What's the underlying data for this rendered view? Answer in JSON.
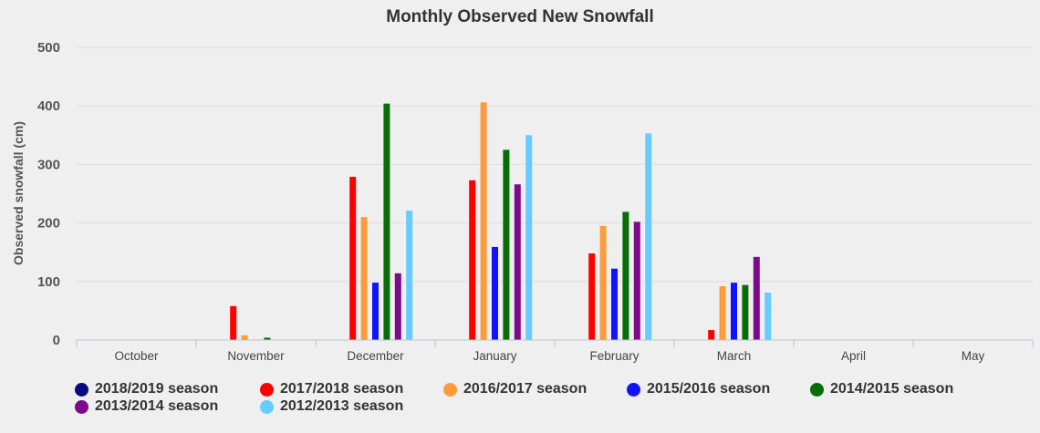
{
  "chart_data": {
    "type": "bar",
    "title": "Monthly Observed New Snowfall",
    "xlabel": "",
    "ylabel": "Observed snowfall (cm)",
    "ylim": [
      0,
      500
    ],
    "yticks": [
      "0",
      "100",
      "200",
      "300",
      "400",
      "500"
    ],
    "grid": true,
    "legend_position": "bottom",
    "categories": [
      "October",
      "November",
      "December",
      "January",
      "February",
      "March",
      "April",
      "May"
    ],
    "series": [
      {
        "name": "2018/2019 season",
        "color": "#0b0b80",
        "values": [
          0,
          0,
          0,
          0,
          0,
          0,
          0,
          0
        ]
      },
      {
        "name": "2017/2018 season",
        "color": "#ff0000",
        "values": [
          0,
          58,
          279,
          273,
          148,
          17,
          0,
          0
        ]
      },
      {
        "name": "2016/2017 season",
        "color": "#ff9a3c",
        "values": [
          0,
          8,
          210,
          406,
          195,
          92,
          0,
          0
        ]
      },
      {
        "name": "2015/2016 season",
        "color": "#1212ff",
        "values": [
          0,
          0,
          98,
          159,
          122,
          98,
          0,
          0
        ]
      },
      {
        "name": "2014/2015 season",
        "color": "#076e07",
        "values": [
          0,
          4,
          404,
          325,
          219,
          94,
          0,
          0
        ]
      },
      {
        "name": "2013/2014 season",
        "color": "#7d0a8a",
        "values": [
          0,
          0,
          114,
          266,
          202,
          142,
          0,
          0
        ]
      },
      {
        "name": "2012/2013 season",
        "color": "#66ccff",
        "values": [
          0,
          0,
          221,
          350,
          353,
          81,
          0,
          0
        ]
      }
    ]
  }
}
